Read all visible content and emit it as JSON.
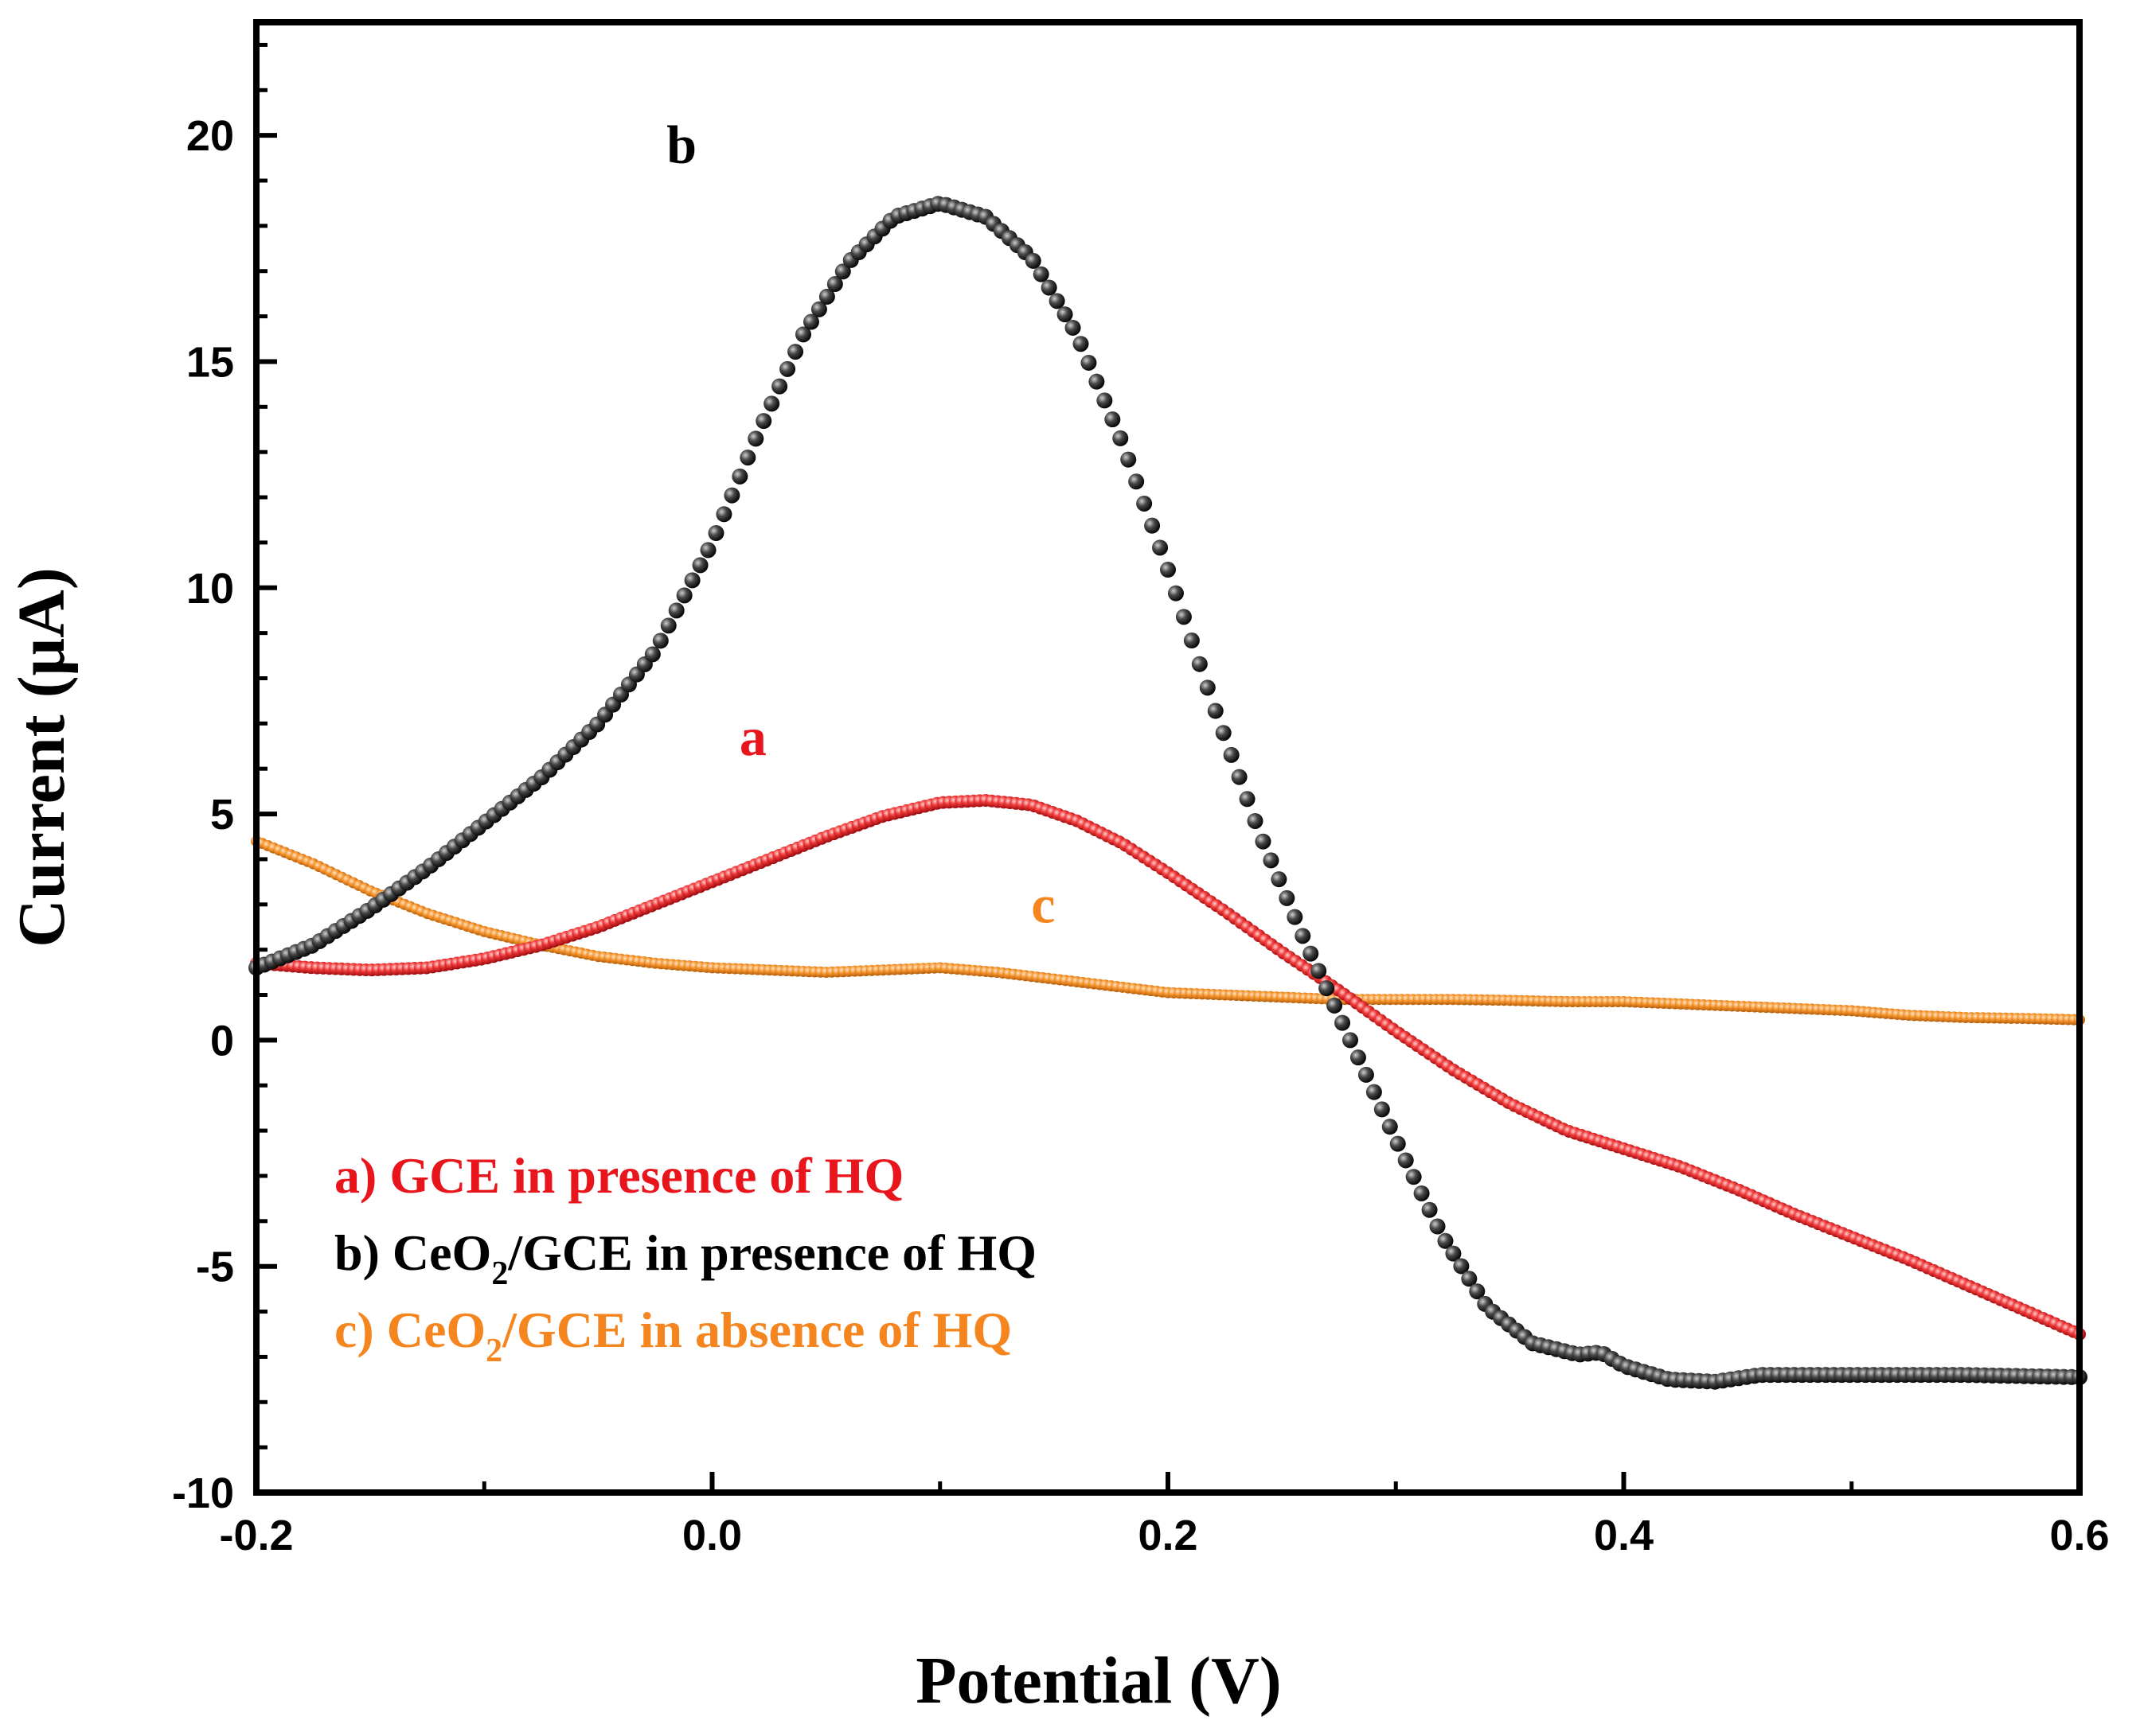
{
  "chart_data": {
    "type": "scatter",
    "title": "",
    "xlabel": "Potential (V)",
    "ylabel": "Current (μA)",
    "xlim": [
      -0.2,
      0.6
    ],
    "ylim": [
      -10,
      22.5
    ],
    "x_ticks": [
      {
        "value": -0.2,
        "label": "-0.2"
      },
      {
        "value": 0.0,
        "label": "0.0"
      },
      {
        "value": 0.2,
        "label": "0.2"
      },
      {
        "value": 0.4,
        "label": "0.4"
      },
      {
        "value": 0.6,
        "label": "0.6"
      }
    ],
    "y_ticks": [
      {
        "value": -10,
        "label": "-10"
      },
      {
        "value": -5,
        "label": "-5"
      },
      {
        "value": 0,
        "label": "0"
      },
      {
        "value": 5,
        "label": "5"
      },
      {
        "value": 10,
        "label": "10"
      },
      {
        "value": 15,
        "label": "15"
      },
      {
        "value": 20,
        "label": "20"
      }
    ],
    "grid": false,
    "legend_position": "bottom-left",
    "series": [
      {
        "id": "a",
        "name": "a) GCE in presence of HQ",
        "curve_label": "a",
        "color": "#e8161c",
        "label_at": [
          0.012,
          6.3
        ],
        "x": [
          -0.2,
          -0.175,
          -0.15,
          -0.125,
          -0.1,
          -0.075,
          -0.05,
          -0.025,
          0.0,
          0.025,
          0.05,
          0.075,
          0.1,
          0.12,
          0.14,
          0.16,
          0.18,
          0.2,
          0.225,
          0.25,
          0.275,
          0.3,
          0.325,
          0.35,
          0.375,
          0.4,
          0.425,
          0.45,
          0.475,
          0.5,
          0.525,
          0.55,
          0.575,
          0.6
        ],
        "y": [
          1.7,
          1.6,
          1.55,
          1.6,
          1.8,
          2.1,
          2.5,
          3.0,
          3.5,
          4.0,
          4.5,
          4.95,
          5.25,
          5.3,
          5.2,
          4.85,
          4.35,
          3.7,
          2.85,
          1.95,
          1.1,
          0.2,
          -0.65,
          -1.4,
          -2.0,
          -2.4,
          -2.8,
          -3.3,
          -3.85,
          -4.35,
          -4.85,
          -5.4,
          -5.95,
          -6.5
        ]
      },
      {
        "id": "b",
        "name": "b) CeO2/GCE in presence of HQ",
        "curve_label": "b",
        "color": "#1a1a1a",
        "label_at": [
          -0.02,
          19.4
        ],
        "x": [
          -0.2,
          -0.175,
          -0.15,
          -0.125,
          -0.1,
          -0.075,
          -0.05,
          -0.025,
          0.0,
          0.02,
          0.04,
          0.06,
          0.08,
          0.1,
          0.12,
          0.14,
          0.16,
          0.18,
          0.2,
          0.22,
          0.24,
          0.26,
          0.28,
          0.3,
          0.32,
          0.34,
          0.36,
          0.38,
          0.39,
          0.4,
          0.42,
          0.44,
          0.46,
          0.5,
          0.55,
          0.6
        ],
        "y": [
          1.6,
          2.1,
          2.9,
          3.8,
          4.8,
          5.8,
          7.0,
          8.6,
          11.0,
          13.4,
          15.6,
          17.2,
          18.2,
          18.5,
          18.2,
          17.3,
          15.6,
          13.2,
          10.4,
          7.4,
          4.6,
          2.2,
          0.0,
          -2.2,
          -4.3,
          -5.9,
          -6.7,
          -6.95,
          -6.9,
          -7.2,
          -7.5,
          -7.55,
          -7.4,
          -7.4,
          -7.4,
          -7.45
        ]
      },
      {
        "id": "c",
        "name": "c) CeO2/GCE in absence of HQ",
        "curve_label": "c",
        "color": "#f5861f",
        "label_at": [
          0.14,
          2.6
        ],
        "x": [
          -0.2,
          -0.175,
          -0.15,
          -0.125,
          -0.1,
          -0.075,
          -0.05,
          -0.025,
          0.0,
          0.025,
          0.05,
          0.075,
          0.1,
          0.125,
          0.15,
          0.175,
          0.2,
          0.225,
          0.25,
          0.275,
          0.3,
          0.325,
          0.35,
          0.375,
          0.4,
          0.425,
          0.45,
          0.475,
          0.5,
          0.525,
          0.55,
          0.575,
          0.6
        ],
        "y": [
          4.4,
          3.9,
          3.3,
          2.8,
          2.4,
          2.1,
          1.85,
          1.7,
          1.6,
          1.55,
          1.5,
          1.55,
          1.6,
          1.5,
          1.35,
          1.2,
          1.05,
          1.0,
          0.95,
          0.9,
          0.9,
          0.9,
          0.88,
          0.85,
          0.85,
          0.8,
          0.75,
          0.7,
          0.65,
          0.55,
          0.5,
          0.48,
          0.45
        ]
      }
    ]
  },
  "legend": {
    "a": {
      "text": "a) GCE in presence of HQ"
    },
    "b": {
      "prefix": "b) CeO",
      "sub": "2",
      "suffix": "/GCE in presence of HQ"
    },
    "c": {
      "prefix": "c) CeO",
      "sub": "2",
      "suffix": "/GCE in absence of HQ"
    }
  }
}
